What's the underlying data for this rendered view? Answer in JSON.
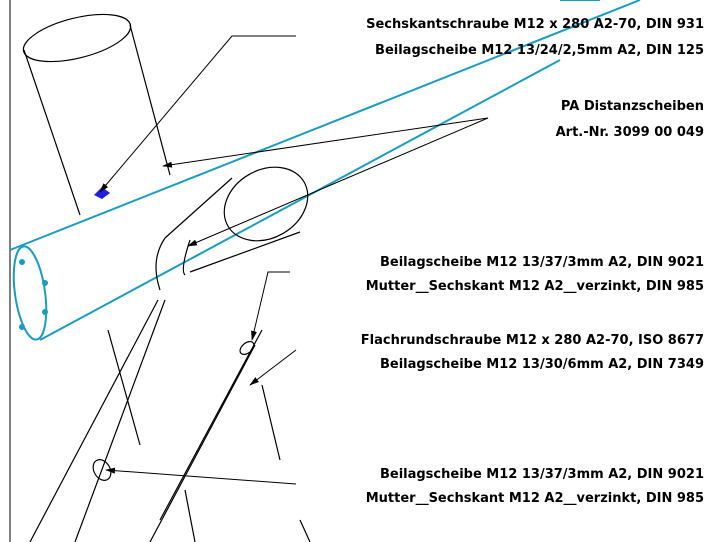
{
  "annotations": [
    {
      "lines": [
        "Sechskantschraube M12 x 280 A2-70, DIN 931",
        "Beilagscheibe M12 13/24/2,5mm A2, DIN 125"
      ]
    },
    {
      "lines": [
        "PA Distanzscheiben",
        "Art.-Nr. 3099 00 049"
      ]
    },
    {
      "lines": [
        "Beilagscheibe M12 13/37/3mm A2, DIN 9021",
        "Mutter__Sechskant M12 A2__verzinkt, DIN 985"
      ]
    },
    {
      "lines": [
        "Flachrundschraube M12 x 280 A2-70, ISO 8677",
        "Beilagscheibe M12 13/30/6mm A2, DIN 7349"
      ]
    },
    {
      "lines": [
        "Beilagscheibe M12 13/37/3mm A2, DIN 9021",
        "Mutter__Sechskant M12 A2__verzinkt, DIN 985"
      ]
    }
  ]
}
